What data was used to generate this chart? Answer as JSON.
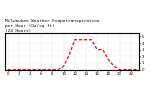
{
  "title": "Milwaukee Weather Evapotranspiration\nper Hour (Oz/sq ft)\n(24 Hours)",
  "hours": [
    0,
    1,
    2,
    3,
    4,
    5,
    6,
    7,
    8,
    9,
    10,
    11,
    12,
    13,
    14,
    15,
    16,
    17,
    18,
    19,
    20,
    21,
    22,
    23
  ],
  "values": [
    0,
    0,
    0,
    0,
    0,
    0,
    0,
    0,
    0,
    0,
    0.5,
    2.2,
    4.5,
    4.5,
    4.5,
    4.5,
    3.0,
    3.0,
    1.5,
    0.5,
    0,
    0,
    0,
    0
  ],
  "line_color": "#ff0000",
  "bg_color": "#ffffff",
  "grid_color": "#808080",
  "ylim": [
    0,
    5.5
  ],
  "ytick_values": [
    0,
    1,
    2,
    3,
    4,
    5
  ],
  "ytick_labels": [
    "0",
    "1",
    "2",
    "3",
    "4",
    "5"
  ],
  "xtick_step": 2,
  "title_fontsize": 3.2,
  "tick_fontsize": 2.8,
  "linewidth": 0.9
}
